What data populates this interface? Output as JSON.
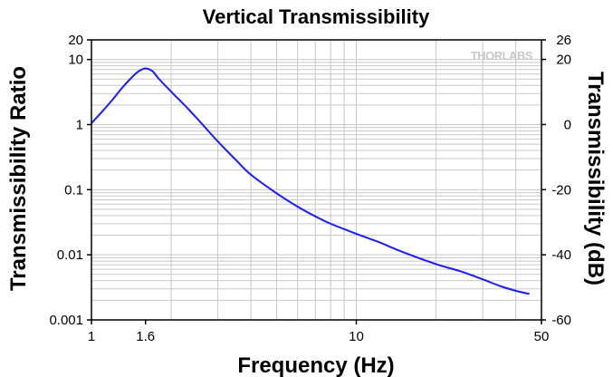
{
  "chart_data": {
    "type": "line",
    "title": "Vertical Transmissibility",
    "xlabel": "Frequency (Hz)",
    "ylabel": "Transmissibility Ratio",
    "y2label": "Transmissibility (dB)",
    "xscale": "log",
    "yscale": "log",
    "xlim": [
      1,
      50
    ],
    "ylim": [
      0.001,
      20
    ],
    "y2lim": [
      -60,
      26
    ],
    "grid": true,
    "xticks": [
      {
        "value": 1,
        "label": "1"
      },
      {
        "value": 1.6,
        "label": "1.6"
      },
      {
        "value": 10,
        "label": "10"
      },
      {
        "value": 50,
        "label": "50"
      }
    ],
    "yticks": [
      {
        "value": 0.001,
        "label": "0.001"
      },
      {
        "value": 0.01,
        "label": "0.01"
      },
      {
        "value": 0.1,
        "label": "0.1"
      },
      {
        "value": 1,
        "label": "1"
      },
      {
        "value": 10,
        "label": "10"
      },
      {
        "value": 20,
        "label": "20"
      }
    ],
    "y2ticks": [
      {
        "value": -60,
        "label": "-60"
      },
      {
        "value": -40,
        "label": "-40"
      },
      {
        "value": -20,
        "label": "-20"
      },
      {
        "value": 0,
        "label": "0"
      },
      {
        "value": 20,
        "label": "20"
      },
      {
        "value": 26,
        "label": "26"
      }
    ],
    "series": [
      {
        "name": "Vertical Transmissibility",
        "color": "#1a1aff",
        "x": [
          1.0,
          1.1,
          1.2,
          1.3,
          1.4,
          1.5,
          1.6,
          1.7,
          1.8,
          2.0,
          2.3,
          2.6,
          3.0,
          3.5,
          4.0,
          5.0,
          6.0,
          7.0,
          8.0,
          10.0,
          12.0,
          15.0,
          20.0,
          25.0,
          30.0,
          35.0,
          40.0,
          45.0
        ],
        "y": [
          1.05,
          1.6,
          2.4,
          3.6,
          5.0,
          6.5,
          7.3,
          6.6,
          5.0,
          3.2,
          1.8,
          1.05,
          0.55,
          0.29,
          0.17,
          0.088,
          0.055,
          0.039,
          0.03,
          0.021,
          0.016,
          0.011,
          0.0072,
          0.0055,
          0.0042,
          0.0033,
          0.0028,
          0.0025
        ]
      }
    ]
  },
  "watermark": {
    "brand": "THORLABS"
  }
}
